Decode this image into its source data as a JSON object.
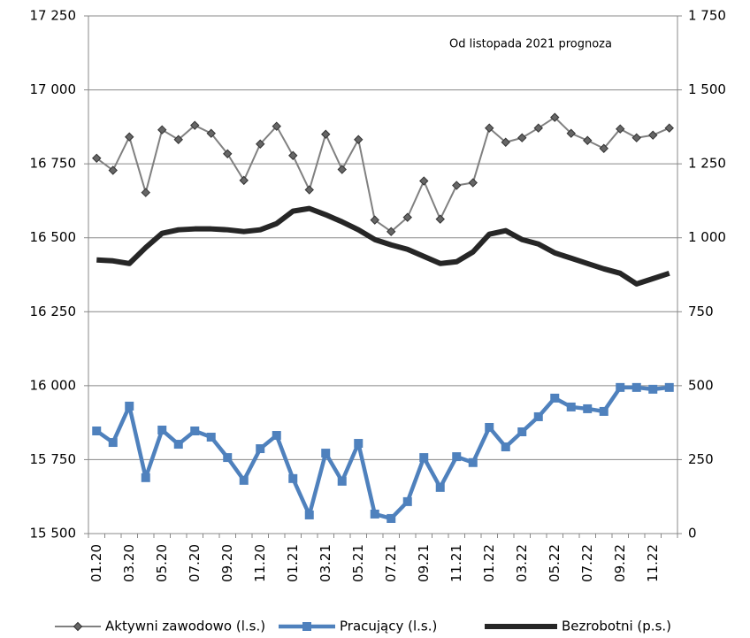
{
  "chart_data": {
    "type": "line",
    "annotation": "Od listopada 2021 prognoza",
    "categories": [
      "01.20",
      null,
      "03.20",
      null,
      "05.20",
      null,
      "07.20",
      null,
      "09.20",
      null,
      "11.20",
      null,
      "01.21",
      null,
      "03.21",
      null,
      "05.21",
      null,
      "07.21",
      null,
      "09.21",
      null,
      "11.21",
      null,
      "01.22",
      null,
      "03.22",
      null,
      "05.22",
      null,
      "07.22",
      null,
      "09.22",
      null,
      "11.22",
      null
    ],
    "series": [
      {
        "name": "Aktywni zawodowo (l.s.)",
        "color": "#808080",
        "marker": "diamond",
        "axis": "y",
        "values": [
          16769,
          16728,
          16841,
          16653,
          16865,
          16832,
          16880,
          16853,
          16784,
          16694,
          16817,
          16877,
          16778,
          16662,
          16850,
          16731,
          16832,
          16560,
          16521,
          16569,
          16692,
          16563,
          16677,
          16686,
          16871,
          16823,
          16838,
          16871,
          16907,
          16853,
          16829,
          16802,
          16868,
          16838,
          16847,
          16871
        ]
      },
      {
        "name": "Pracujący (l.s.)",
        "color": "#4f81bd",
        "marker": "square",
        "axis": "y",
        "values": [
          15847,
          15808,
          15931,
          15689,
          15850,
          15802,
          15847,
          15826,
          15757,
          15680,
          15787,
          15832,
          15686,
          15563,
          15772,
          15677,
          15805,
          15566,
          15551,
          15608,
          15757,
          15656,
          15760,
          15740,
          15859,
          15793,
          15844,
          15895,
          15958,
          15928,
          15922,
          15913,
          15994,
          15994,
          15988,
          15994
        ]
      },
      {
        "name": "Bezrobotni (p.s.)",
        "color": "#262626",
        "marker": "none",
        "axis": "y2",
        "values": [
          925,
          922,
          913,
          967,
          1015,
          1027,
          1030,
          1030,
          1027,
          1021,
          1027,
          1048,
          1090,
          1099,
          1078,
          1054,
          1027,
          994,
          976,
          961,
          937,
          913,
          919,
          952,
          1012,
          1024,
          994,
          979,
          949,
          931,
          913,
          895,
          880,
          844,
          862,
          880
        ]
      }
    ],
    "ylim": [
      15500,
      17250
    ],
    "yticks": [
      {
        "value": 15500,
        "label": "15 500"
      },
      {
        "value": 15750,
        "label": "15 750"
      },
      {
        "value": 16000,
        "label": "16 000"
      },
      {
        "value": 16250,
        "label": "16 250"
      },
      {
        "value": 16500,
        "label": "16 500"
      },
      {
        "value": 16750,
        "label": "16 750"
      },
      {
        "value": 17000,
        "label": "17 000"
      },
      {
        "value": 17250,
        "label": "17 250"
      }
    ],
    "y2lim": [
      0,
      1750
    ],
    "y2ticks": [
      0,
      250,
      500,
      750,
      {
        "value": 1000,
        "label": "1 000"
      },
      {
        "value": 1250,
        "label": "1 250"
      },
      {
        "value": 1500,
        "label": "1 500"
      },
      {
        "value": 1750,
        "label": "1 750"
      }
    ],
    "grid": true,
    "legend": "bottom"
  }
}
